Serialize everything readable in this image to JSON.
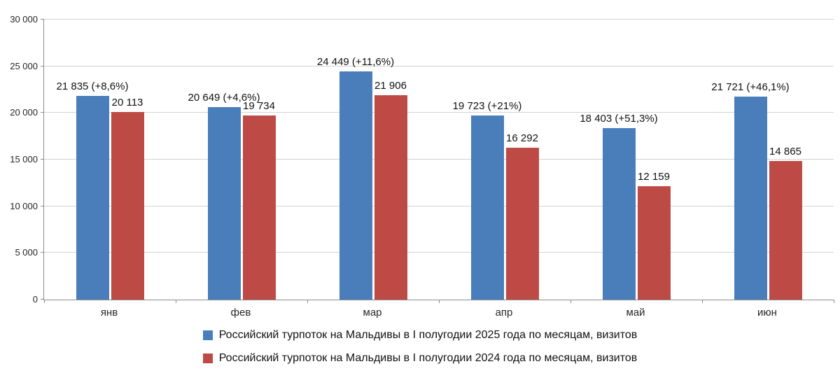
{
  "chart_data": {
    "type": "bar",
    "categories": [
      "янв",
      "фев",
      "мар",
      "апр",
      "май",
      "июн"
    ],
    "series": [
      {
        "name": "Российский турпоток на Мальдивы в I полугодии 2025 года по месяцам, визитов",
        "color": "#4a7ebb",
        "values": [
          21835,
          20649,
          24449,
          19723,
          18403,
          21721
        ],
        "labels": [
          "21 835 (+8,6%)",
          "20 649 (+4,6%)",
          "24 449 (+11,6%)",
          "19 723 (+21%)",
          "18 403 (+51,3%)",
          "21 721 (+46,1%)"
        ]
      },
      {
        "name": "Российский турпоток на Мальдивы в I полугодии 2024 года по месяцам, визитов",
        "color": "#be4a46",
        "values": [
          20113,
          19734,
          21906,
          16292,
          12159,
          14865
        ],
        "labels": [
          "20 113",
          "19 734",
          "21 906",
          "16 292",
          "12 159",
          "14 865"
        ]
      }
    ],
    "title": "",
    "xlabel": "",
    "ylabel": "",
    "ylim": [
      0,
      30000
    ],
    "yticks": [
      0,
      5000,
      10000,
      15000,
      20000,
      25000,
      30000
    ],
    "ytick_labels": [
      "0",
      "5 000",
      "10 000",
      "15 000",
      "20 000",
      "25 000",
      "30 000"
    ],
    "grid": true,
    "legend_position": "bottom"
  }
}
